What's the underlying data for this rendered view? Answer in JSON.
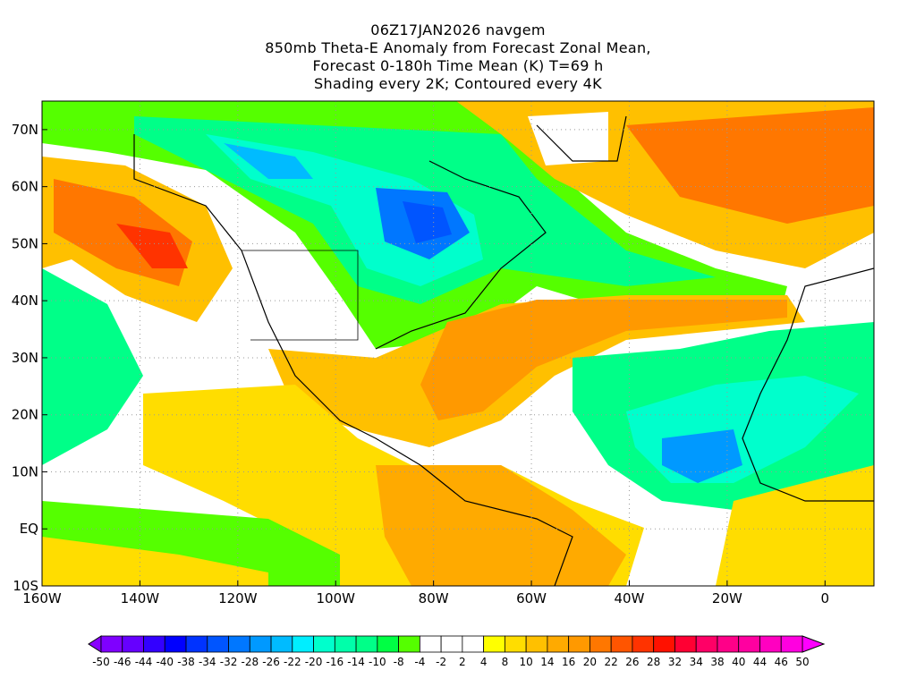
{
  "title": {
    "line1": "06Z17JAN2026 navgem",
    "line2": "850mb Theta-E Anomaly from Forecast Zonal Mean,",
    "line3": "Forecast 0-180h Time Mean (K) T=69 h",
    "line4": "Shading every 2K; Contoured every 4K"
  },
  "axes": {
    "lat_labels": [
      "70N",
      "60N",
      "50N",
      "40N",
      "30N",
      "20N",
      "10N",
      "EQ",
      "10S"
    ],
    "lat_values": [
      70,
      60,
      50,
      40,
      30,
      20,
      10,
      0,
      -10
    ],
    "lon_labels": [
      "160W",
      "140W",
      "120W",
      "100W",
      "80W",
      "60W",
      "40W",
      "20W",
      "0"
    ],
    "lon_values": [
      -160,
      -140,
      -120,
      -100,
      -80,
      -60,
      -40,
      -20,
      0
    ],
    "lon_range": [
      -160,
      10
    ],
    "lat_range": [
      -10,
      75
    ]
  },
  "colorbar": {
    "labels": [
      "-50",
      "-46",
      "-44",
      "-40",
      "-38",
      "-34",
      "-32",
      "-28",
      "-26",
      "-22",
      "-20",
      "-16",
      "-14",
      "-10",
      "-8",
      "-4",
      "-2",
      "2",
      "4",
      "8",
      "10",
      "14",
      "16",
      "20",
      "22",
      "26",
      "28",
      "32",
      "34",
      "38",
      "40",
      "44",
      "46",
      "50"
    ],
    "colors": [
      "#7f00ff",
      "#6600ff",
      "#3300ff",
      "#0000ff",
      "#0033ff",
      "#0055ff",
      "#0077ff",
      "#0099ff",
      "#00bbff",
      "#00eeff",
      "#00ffcc",
      "#00ffaa",
      "#00ff88",
      "#00ff44",
      "#55ff00",
      "#ffffff",
      "#ffffff",
      "#ffffff",
      "#ffff00",
      "#ffdd00",
      "#ffc000",
      "#ffaa00",
      "#ff9900",
      "#ff7700",
      "#ff5500",
      "#ff3300",
      "#ff1100",
      "#ff0033",
      "#ff0066",
      "#ff0088",
      "#ff00a0",
      "#ff00c0",
      "#ff00e0"
    ],
    "low_arrow_color": "#8800ff",
    "high_arrow_color": "#ff00ff"
  }
}
